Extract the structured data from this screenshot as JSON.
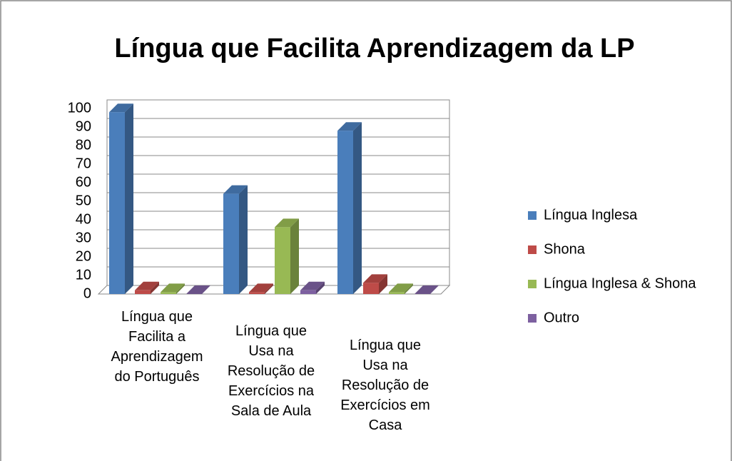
{
  "chart_data": {
    "type": "bar",
    "title": "Língua que Facilita Aprendizagem da LP",
    "categories": [
      "Língua que Facilita a Aprendizagem do Português",
      "Língua que Usa na Resolução de Exercícios na Sala de Aula",
      "Língua que Usa na Resolução de Exercícios em Casa"
    ],
    "series": [
      {
        "name": "Língua Inglesa",
        "color": "#4a7ebb",
        "values": [
          98,
          54,
          88
        ]
      },
      {
        "name": "Shona",
        "color": "#be4b48",
        "values": [
          2,
          1,
          6
        ]
      },
      {
        "name": "Língua Inglesa & Shona",
        "color": "#98b954",
        "values": [
          1,
          36,
          1
        ]
      },
      {
        "name": "Outro",
        "color": "#7d60a0",
        "values": [
          0,
          2,
          0
        ]
      }
    ],
    "ylim": [
      0,
      100
    ],
    "yticks": [
      0,
      10,
      20,
      30,
      40,
      50,
      60,
      70,
      80,
      90,
      100
    ],
    "grid": true,
    "legend": "right"
  }
}
